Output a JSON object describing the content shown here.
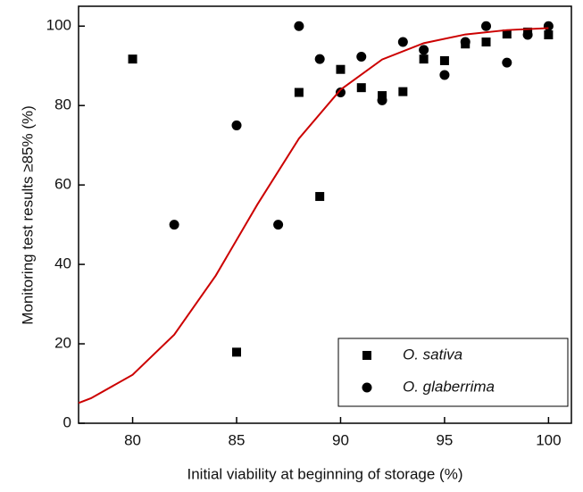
{
  "chart_data": {
    "type": "scatter",
    "xlabel": "Initial viability at beginning of storage (%)",
    "ylabel": "Monitoring test results ≥85% (%)",
    "xlim": [
      77.4,
      101.1
    ],
    "ylim": [
      0,
      105
    ],
    "xticks": [
      80,
      85,
      90,
      95,
      100
    ],
    "yticks": [
      0,
      20,
      40,
      60,
      80,
      100
    ],
    "legend": "lower right",
    "series": [
      {
        "name": "O. sativa",
        "marker": "square",
        "color": "#000000",
        "x": [
          80,
          85,
          88,
          89,
          90,
          91,
          92,
          93,
          94,
          95,
          96,
          97,
          98,
          99,
          100
        ],
        "values": [
          91.7,
          17.9,
          83.3,
          57.1,
          89.1,
          84.5,
          82.5,
          83.5,
          91.7,
          91.3,
          95.5,
          96,
          98,
          98.5,
          97.8
        ]
      },
      {
        "name": "O. glaberrima",
        "marker": "circle",
        "color": "#000000",
        "x": [
          82,
          85,
          87,
          88,
          89,
          90,
          91,
          92,
          93,
          94,
          95,
          96,
          97,
          98,
          99,
          100
        ],
        "values": [
          50,
          75,
          50,
          100,
          91.7,
          83.3,
          92.3,
          81.3,
          96,
          94,
          87.7,
          96,
          100,
          90.8,
          97.8,
          100
        ]
      },
      {
        "marker": "line",
        "color": "#cc0000",
        "x": [
          77.4,
          78,
          80,
          82,
          84,
          86,
          88,
          90,
          92,
          94,
          96,
          98,
          100
        ],
        "values": [
          5.1,
          6.3,
          12.2,
          22.3,
          37.2,
          55.1,
          71.7,
          84.0,
          91.6,
          95.7,
          97.9,
          99.0,
          99.5
        ]
      }
    ]
  }
}
